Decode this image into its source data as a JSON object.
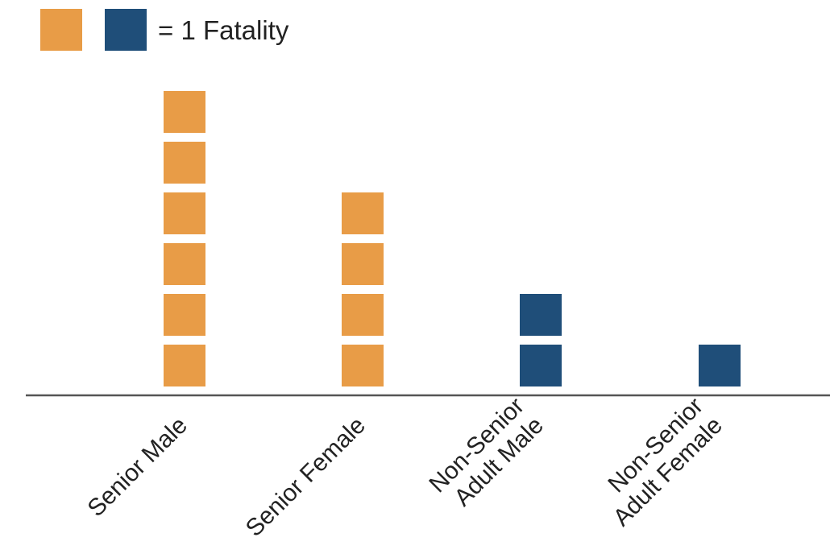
{
  "chart_data": {
    "type": "bar",
    "style": "pictograph",
    "legend": {
      "label": "= 1 Fatality",
      "placement": "top-left",
      "swatches": [
        "#E89C47",
        "#1F4E79"
      ]
    },
    "categories": [
      {
        "lines": [
          "Senior Male"
        ],
        "value": 6,
        "color": "#E89C47"
      },
      {
        "lines": [
          "Senior Female"
        ],
        "value": 4,
        "color": "#E89C47"
      },
      {
        "lines": [
          "Non-Senior",
          "Adult Male"
        ],
        "value": 2,
        "color": "#1F4E79"
      },
      {
        "lines": [
          "Non-Senior",
          "Adult Female"
        ],
        "value": 1,
        "color": "#1F4E79"
      }
    ],
    "values": [
      6,
      4,
      2,
      1
    ],
    "unit": "Fatality",
    "title": "",
    "xlabel": "",
    "ylabel": "",
    "grid": false,
    "axis_color": "#555555"
  }
}
